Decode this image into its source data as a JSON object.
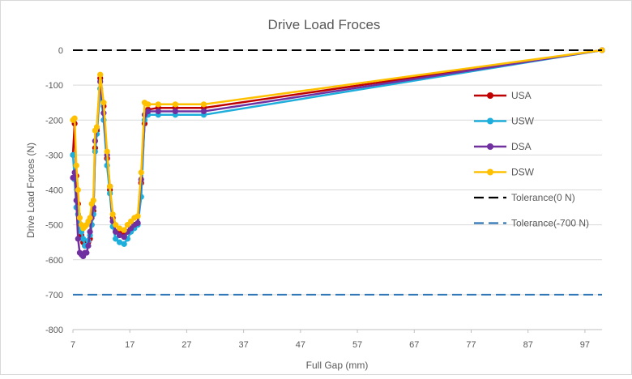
{
  "chart_data": {
    "type": "line",
    "title": "Drive Load Froces",
    "xlabel": "Full Gap (mm)",
    "ylabel": "Drive Load Forces (N)",
    "xlim": [
      7,
      100
    ],
    "ylim": [
      -800,
      0
    ],
    "x_ticks": [
      7,
      17,
      27,
      37,
      47,
      57,
      67,
      77,
      87,
      97
    ],
    "y_ticks": [
      0,
      -100,
      -200,
      -300,
      -400,
      -500,
      -600,
      -700,
      -800
    ],
    "legend_position": "right",
    "grid": "horizontal",
    "series": [
      {
        "name": "USA",
        "color": "#C00000",
        "marker": "circle",
        "dash": "solid",
        "x": [
          7.0,
          7.3,
          7.6,
          7.9,
          8.2,
          8.5,
          8.8,
          9.1,
          9.4,
          9.7,
          10.0,
          10.3,
          10.6,
          10.9,
          11.2,
          11.8,
          12.4,
          13.0,
          13.5,
          14.0,
          14.5,
          15.2,
          16.0,
          16.6,
          17.2,
          17.8,
          18.4,
          19.0,
          19.6,
          20.2,
          22.0,
          25.0,
          30.0,
          100.0
        ],
        "y": [
          -300,
          -210,
          -360,
          -440,
          -500,
          -530,
          -550,
          -560,
          -560,
          -550,
          -540,
          -500,
          -460,
          -280,
          -230,
          -80,
          -160,
          -310,
          -400,
          -480,
          -520,
          -525,
          -530,
          -520,
          -510,
          -500,
          -495,
          -380,
          -210,
          -170,
          -165,
          -165,
          -165,
          0
        ]
      },
      {
        "name": "USW",
        "color": "#1EAEDB",
        "marker": "circle",
        "dash": "solid",
        "x": [
          7.0,
          7.3,
          7.6,
          7.9,
          8.2,
          8.5,
          8.8,
          9.1,
          9.4,
          9.7,
          10.0,
          10.3,
          10.6,
          10.9,
          11.2,
          11.8,
          12.4,
          13.0,
          13.5,
          14.0,
          14.5,
          15.2,
          16.0,
          16.6,
          17.2,
          17.8,
          18.4,
          19.0,
          19.6,
          20.2,
          22.0,
          25.0,
          30.0,
          100.0
        ],
        "y": [
          -300,
          -370,
          -450,
          -470,
          -510,
          -520,
          -540,
          -560,
          -560,
          -545,
          -530,
          -500,
          -470,
          -290,
          -240,
          -110,
          -200,
          -330,
          -410,
          -505,
          -540,
          -550,
          -555,
          -540,
          -520,
          -510,
          -500,
          -420,
          -200,
          -185,
          -185,
          -185,
          -185,
          0
        ]
      },
      {
        "name": "DSA",
        "color": "#7030A0",
        "marker": "circle",
        "dash": "solid",
        "x": [
          7.0,
          7.3,
          7.6,
          7.9,
          8.2,
          8.5,
          8.8,
          9.1,
          9.4,
          9.7,
          10.0,
          10.3,
          10.6,
          10.9,
          11.2,
          11.8,
          12.4,
          13.0,
          13.5,
          14.0,
          14.5,
          15.2,
          16.0,
          16.6,
          17.2,
          17.8,
          18.4,
          19.0,
          19.6,
          20.2,
          22.0,
          25.0,
          30.0,
          100.0
        ],
        "y": [
          -365,
          -350,
          -430,
          -540,
          -580,
          -585,
          -590,
          -580,
          -580,
          -560,
          -520,
          -480,
          -450,
          -260,
          -225,
          -90,
          -180,
          -300,
          -390,
          -490,
          -520,
          -530,
          -535,
          -520,
          -510,
          -500,
          -495,
          -370,
          -185,
          -175,
          -175,
          -175,
          -175,
          0
        ]
      },
      {
        "name": "DSW",
        "color": "#FFC000",
        "marker": "circle",
        "dash": "solid",
        "x": [
          7.0,
          7.3,
          7.6,
          7.9,
          8.2,
          8.5,
          8.8,
          9.1,
          9.4,
          9.7,
          10.0,
          10.3,
          10.6,
          10.9,
          11.2,
          11.8,
          12.4,
          13.0,
          13.5,
          14.0,
          14.5,
          15.2,
          16.0,
          16.6,
          17.2,
          17.8,
          18.4,
          19.0,
          19.6,
          20.2,
          22.0,
          25.0,
          30.0,
          100.0
        ],
        "y": [
          -200,
          -195,
          -330,
          -400,
          -480,
          -500,
          -510,
          -505,
          -500,
          -490,
          -480,
          -440,
          -430,
          -230,
          -220,
          -70,
          -150,
          -290,
          -390,
          -470,
          -500,
          -510,
          -515,
          -500,
          -490,
          -480,
          -475,
          -350,
          -150,
          -155,
          -155,
          -155,
          -155,
          0
        ]
      },
      {
        "name": "Tolerance(0 N)",
        "color": "#000000",
        "marker": "none",
        "dash": "dashed",
        "x": [
          7,
          100
        ],
        "y": [
          0,
          0
        ]
      },
      {
        "name": "Tolerance(-700 N)",
        "color": "#2E75B6",
        "marker": "none",
        "dash": "dashed",
        "x": [
          7,
          100
        ],
        "y": [
          -700,
          -700
        ]
      }
    ]
  }
}
